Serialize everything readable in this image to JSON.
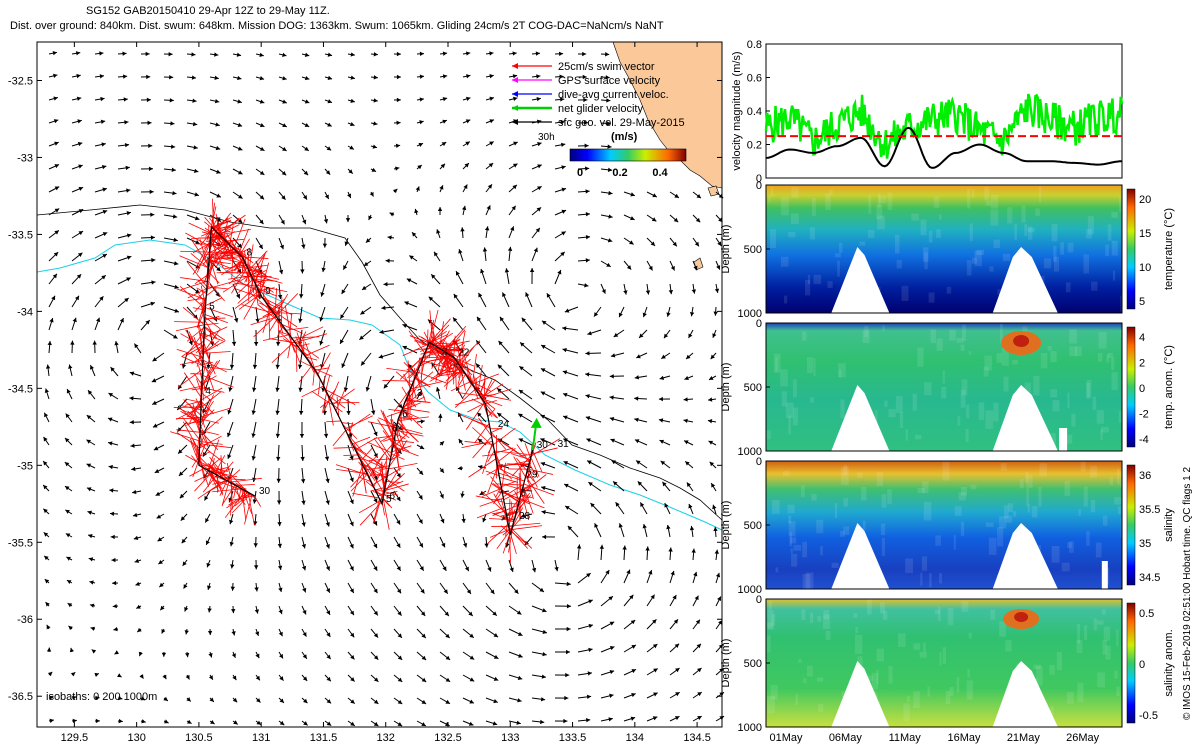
{
  "header": {
    "line1": "SG152 GAB20150410 29-Apr 12Z to 29-May 11Z.",
    "line2": "Dist. over ground: 840km. Dist. swum: 648km. Mission DOG: 1363km. Swum: 1065km. Gliding 24cm/s 2T COG-DAC=NaNcm/s NaNT"
  },
  "colors": {
    "land": "#fbc89a",
    "isobath_200": "#000000",
    "isobath_1000": "#1ad0e8",
    "swim": "#ff0000",
    "gps": "#ff00ff",
    "dac": "#0000ff",
    "net": "#00d000",
    "sfc": "#000000"
  },
  "chart_data": [
    {
      "type": "map",
      "xlim": [
        129.2,
        134.7
      ],
      "ylim": [
        -36.7,
        -32.25
      ],
      "xticks": [
        "129.5",
        "130",
        "130.5",
        "131",
        "131.5",
        "132",
        "132.5",
        "133",
        "133.5",
        "134",
        "134.5"
      ],
      "yticks": [
        "-32.5",
        "-33",
        "-33.5",
        "-34",
        "-34.5",
        "-35",
        "-35.5",
        "-36",
        "-36.5"
      ],
      "legend": [
        {
          "label": "25cm/s swim vector",
          "color": "#ff0000"
        },
        {
          "label": "GPS surface velocity",
          "color": "#ff00ff"
        },
        {
          "label": "dive-avg current veloc.",
          "color": "#0000ff"
        },
        {
          "label": "net glider velocity",
          "color": "#00d000"
        },
        {
          "label": "sfc geo. vel. 29-May-2015",
          "color": "#000000"
        }
      ],
      "legend_extra": "30h",
      "colorbar": {
        "title": "(m/s)",
        "ticks": [
          "0",
          "0.2",
          "0.4"
        ]
      },
      "isobath_label": "isobaths: 0   200   1000m",
      "track": [
        {
          "lon": 130.6,
          "lat": -33.45,
          "label": "7"
        },
        {
          "lon": 130.85,
          "lat": -33.65,
          "label": "8"
        },
        {
          "lon": 131.0,
          "lat": -33.9,
          "label": "9"
        },
        {
          "lon": 131.45,
          "lat": -34.4,
          "label": ""
        },
        {
          "lon": 131.97,
          "lat": -35.25,
          "label": "5"
        },
        {
          "lon": 132.1,
          "lat": -34.7,
          "label": "6"
        },
        {
          "lon": 132.35,
          "lat": -34.2,
          "label": ""
        },
        {
          "lon": 132.55,
          "lat": -34.3,
          "label": "22"
        },
        {
          "lon": 132.8,
          "lat": -34.6,
          "label": ""
        },
        {
          "lon": 133.0,
          "lat": -35.45,
          "label": ""
        },
        {
          "lon": 133.18,
          "lat": -34.9,
          "label": "30"
        }
      ],
      "track_west": [
        {
          "lon": 130.6,
          "lat": -33.45,
          "label": ""
        },
        {
          "lon": 130.55,
          "lat": -34.0,
          "label": "5"
        },
        {
          "lon": 130.52,
          "lat": -34.55,
          "label": "4"
        },
        {
          "lon": 130.5,
          "lat": -35.0,
          "label": ""
        },
        {
          "lon": 130.95,
          "lat": -35.2,
          "label": "30"
        }
      ],
      "extra_labels": [
        {
          "lon": 132.45,
          "lat": -34.28,
          "text": "2"
        },
        {
          "lon": 132.25,
          "lat": -34.55,
          "text": "3"
        },
        {
          "lon": 132.03,
          "lat": -35.22,
          "text": "6"
        },
        {
          "lon": 132.05,
          "lat": -34.78,
          "text": "6"
        },
        {
          "lon": 132.9,
          "lat": -34.75,
          "text": "24"
        },
        {
          "lon": 133.38,
          "lat": -34.88,
          "text": "31"
        },
        {
          "lon": 133.13,
          "lat": -35.08,
          "text": "29"
        },
        {
          "lon": 133.08,
          "lat": -35.2,
          "text": "6"
        },
        {
          "lon": 133.07,
          "lat": -35.35,
          "text": "28"
        }
      ]
    },
    {
      "type": "line",
      "ylabel": "velocity magnitude (m/s)",
      "ylim": [
        0,
        0.8
      ],
      "yticks": [
        "0",
        "0.2",
        "0.4",
        "0.6",
        "0.8"
      ],
      "x_days": [
        0,
        2,
        4,
        6,
        8,
        10,
        12,
        14,
        16,
        18,
        20,
        22,
        24,
        26,
        28,
        30
      ],
      "series": [
        {
          "color": "#00ee00",
          "values": [
            0.3,
            0.36,
            0.22,
            0.32,
            0.4,
            0.2,
            0.3,
            0.35,
            0.38,
            0.28,
            0.22,
            0.42,
            0.35,
            0.3,
            0.36,
            0.38
          ]
        },
        {
          "color": "#000000",
          "values": [
            0.12,
            0.17,
            0.15,
            0.19,
            0.24,
            0.07,
            0.3,
            0.06,
            0.15,
            0.2,
            0.15,
            0.1,
            0.1,
            0.09,
            0.08,
            0.1
          ]
        },
        {
          "color": "#ff0000",
          "style": "dashed",
          "values": [
            0.25,
            0.25
          ]
        }
      ]
    },
    {
      "type": "heatmap",
      "ylabel": "Depth (m)",
      "cbar_label": "temperature (°C)",
      "ylim": [
        1000,
        0
      ],
      "yticks": [
        "0",
        "500",
        "1000"
      ],
      "cbar_ticks": [
        "20",
        "15",
        "10",
        "5"
      ]
    },
    {
      "type": "heatmap",
      "ylabel": "Depth (m)",
      "cbar_label": "temp. anom. (°C)",
      "ylim": [
        1000,
        0
      ],
      "yticks": [
        "0",
        "500",
        "1000"
      ],
      "cbar_ticks": [
        "4",
        "2",
        "0",
        "-2",
        "-4"
      ]
    },
    {
      "type": "heatmap",
      "ylabel": "Depth (m)",
      "cbar_label": "salinity",
      "ylim": [
        1000,
        0
      ],
      "yticks": [
        "0",
        "500",
        "1000"
      ],
      "cbar_ticks": [
        "36",
        "35.5",
        "35",
        "34.5"
      ]
    },
    {
      "type": "heatmap",
      "ylabel": "Depth (m)",
      "cbar_label": "salinity anom.",
      "ylim": [
        1000,
        0
      ],
      "yticks": [
        "0",
        "500",
        "1000"
      ],
      "cbar_ticks": [
        "0.5",
        "0",
        "-0.5"
      ],
      "xticks": [
        "01May",
        "06May",
        "11May",
        "16May",
        "21May",
        "26May"
      ]
    }
  ],
  "footer_note": "© IMOS 15-Feb-2019 02:51:00 Hobart time. QC flags 1  2"
}
